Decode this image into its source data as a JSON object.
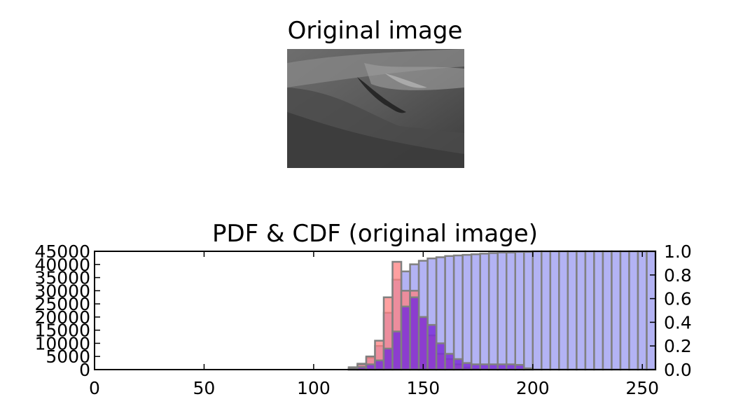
{
  "image_panel": {
    "title": "Original image"
  },
  "chart_data": {
    "type": "bar",
    "title": "PDF & CDF (original image)",
    "xlim": [
      0,
      256
    ],
    "xticks": [
      "0",
      "50",
      "100",
      "150",
      "200",
      "250"
    ],
    "xtick_values": [
      0,
      50,
      100,
      150,
      200,
      250
    ],
    "ylim_left": [
      0,
      45000
    ],
    "yticks_left": [
      "0",
      "5000",
      "10000",
      "15000",
      "20000",
      "25000",
      "30000",
      "35000",
      "40000",
      "45000"
    ],
    "ytick_values_left": [
      0,
      5000,
      10000,
      15000,
      20000,
      25000,
      30000,
      35000,
      40000,
      45000
    ],
    "ylim_right": [
      0,
      1.0
    ],
    "yticks_right": [
      "0.0",
      "0.2",
      "0.4",
      "0.6",
      "0.8",
      "1.0"
    ],
    "ytick_values_right": [
      0,
      0.2,
      0.4,
      0.6,
      0.8,
      1.0
    ],
    "bin_width": 4,
    "bin_starts": [
      116,
      120,
      124,
      128,
      132,
      136,
      140,
      144,
      148,
      152,
      156,
      160,
      164,
      168,
      172,
      176,
      180,
      184,
      188,
      192,
      196,
      200,
      204,
      208,
      212,
      216,
      220,
      224,
      228,
      232,
      236,
      240,
      244,
      248,
      252
    ],
    "series": [
      {
        "axis": "left",
        "color": "#ff8080",
        "edge": "#808080",
        "values": [
          500,
          2000,
          5000,
          11000,
          27500,
          41000,
          30000,
          30000,
          20000,
          13000,
          6000,
          4000,
          2000,
          800,
          200,
          0,
          0,
          0,
          0,
          0,
          0,
          0,
          0,
          0,
          0,
          0,
          0,
          0,
          0,
          0,
          0,
          0,
          0,
          0,
          0
        ]
      },
      {
        "axis": "left",
        "color": "#7b2fd8",
        "edge": "#808080",
        "values": [
          300,
          1000,
          2000,
          3500,
          8000,
          14500,
          24000,
          27500,
          20000,
          17000,
          10000,
          6000,
          4000,
          2500,
          2000,
          2000,
          2000,
          2000,
          2000,
          1800,
          500,
          0,
          0,
          0,
          0,
          0,
          0,
          0,
          0,
          0,
          0,
          0,
          0,
          0,
          0
        ]
      },
      {
        "axis": "right",
        "color": "#9999f0",
        "edge": "#808080",
        "values": [
          0.02,
          0.05,
          0.1,
          0.2,
          0.48,
          0.76,
          0.83,
          0.89,
          0.92,
          0.94,
          0.95,
          0.96,
          0.965,
          0.97,
          0.975,
          0.98,
          0.985,
          0.99,
          0.99,
          0.995,
          0.995,
          1.0,
          1.0,
          1.0,
          1.0,
          1.0,
          1.0,
          1.0,
          1.0,
          1.0,
          1.0,
          1.0,
          1.0,
          1.0,
          1.0
        ]
      }
    ]
  }
}
